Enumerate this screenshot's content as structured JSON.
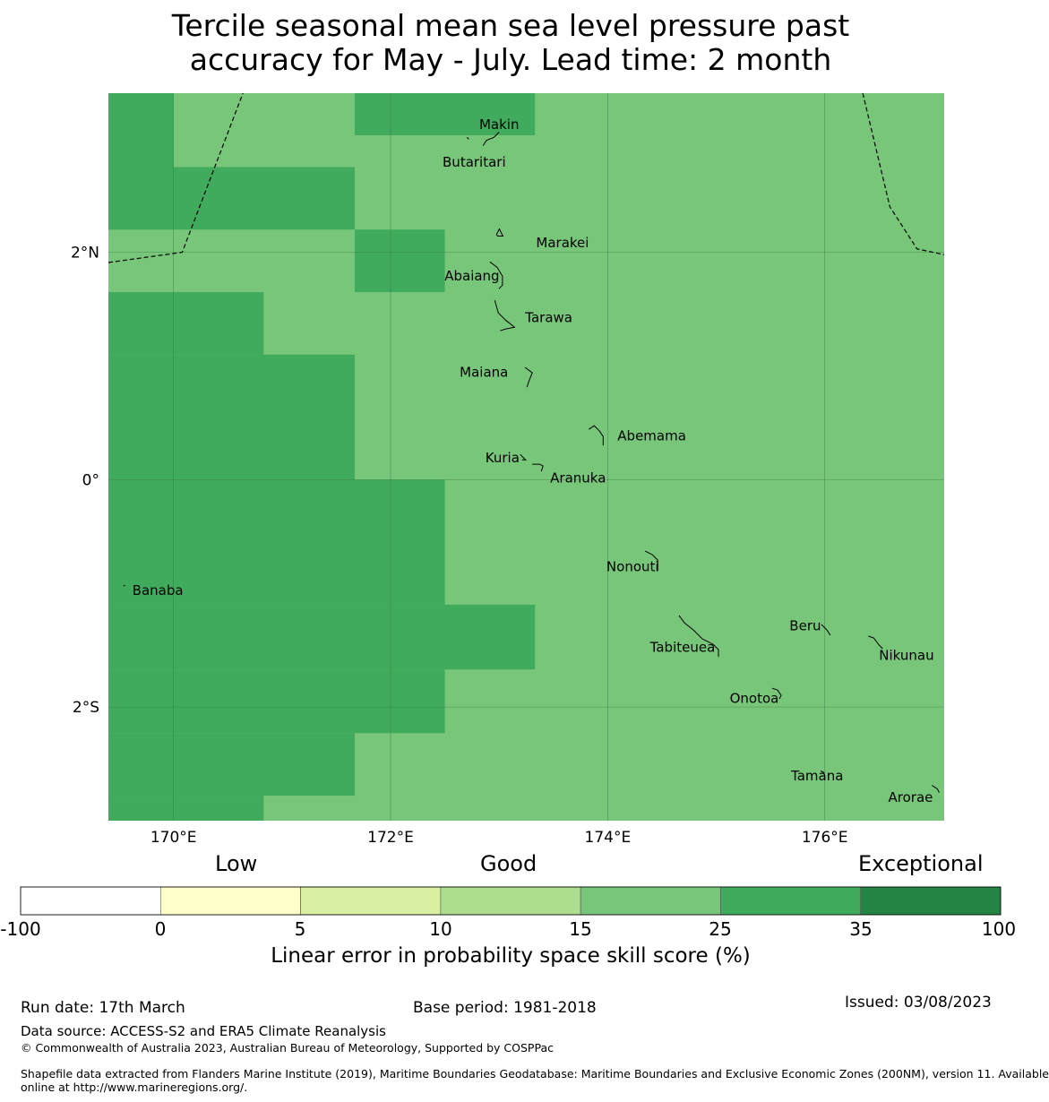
{
  "title": {
    "line1": "Tercile seasonal mean sea level pressure past",
    "line2": "accuracy for May - July. Lead time: 2 month"
  },
  "map": {
    "lon_range": [
      169.4,
      177.1
    ],
    "lat_range": [
      -3.0,
      3.4
    ],
    "lon_ticks": [
      {
        "value": 170,
        "label": "170°E"
      },
      {
        "value": 172,
        "label": "172°E"
      },
      {
        "value": 174,
        "label": "174°E"
      },
      {
        "value": 176,
        "label": "176°E"
      }
    ],
    "lat_ticks": [
      {
        "value": 2,
        "label": "2°N"
      },
      {
        "value": 0,
        "label": "0°"
      },
      {
        "value": -2,
        "label": "2°S"
      }
    ],
    "colors": {
      "skill_15_25": "#78c679",
      "skill_25_35": "#41ab5d",
      "gridline": "#2f6b3a",
      "boundary": "#000000"
    },
    "dark_cells": [
      {
        "lon": [
          169.4,
          170.0
        ],
        "lat": [
          2.2,
          3.4
        ]
      },
      {
        "lon": [
          171.67,
          173.33
        ],
        "lat": [
          3.03,
          3.4
        ]
      },
      {
        "lon": [
          169.4,
          171.67
        ],
        "lat": [
          2.2,
          2.75
        ]
      },
      {
        "lon": [
          171.67,
          172.5
        ],
        "lat": [
          1.65,
          2.2
        ]
      },
      {
        "lon": [
          169.4,
          170.83
        ],
        "lat": [
          1.1,
          1.65
        ]
      },
      {
        "lon": [
          169.4,
          171.67
        ],
        "lat": [
          0.0,
          1.1
        ]
      },
      {
        "lon": [
          169.4,
          172.5
        ],
        "lat": [
          -1.1,
          0.0
        ]
      },
      {
        "lon": [
          169.4,
          173.33
        ],
        "lat": [
          -1.67,
          -1.1
        ]
      },
      {
        "lon": [
          169.4,
          172.5
        ],
        "lat": [
          -2.23,
          -1.67
        ]
      },
      {
        "lon": [
          169.4,
          171.67
        ],
        "lat": [
          -2.78,
          -2.23
        ]
      },
      {
        "lon": [
          169.4,
          170.83
        ],
        "lat": [
          -3.0,
          -2.78
        ]
      }
    ],
    "boundaries": [
      [
        [
          169.4,
          1.91
        ],
        [
          170.08,
          2.0
        ],
        [
          170.64,
          3.4
        ]
      ],
      [
        [
          176.35,
          3.4
        ],
        [
          176.6,
          2.4
        ],
        [
          176.85,
          2.03
        ],
        [
          177.1,
          1.98
        ]
      ]
    ],
    "places": [
      {
        "name": "Makin",
        "lon": 173.0,
        "lat": 3.12,
        "anchor": "middle"
      },
      {
        "name": "Butaritari",
        "lon": 172.77,
        "lat": 2.79,
        "anchor": "middle"
      },
      {
        "name": "Marakei",
        "lon": 173.34,
        "lat": 2.08,
        "anchor": "start"
      },
      {
        "name": "Abaiang",
        "lon": 172.75,
        "lat": 1.79,
        "anchor": "middle"
      },
      {
        "name": "Tarawa",
        "lon": 173.24,
        "lat": 1.42,
        "anchor": "start"
      },
      {
        "name": "Maiana",
        "lon": 172.86,
        "lat": 0.94,
        "anchor": "middle"
      },
      {
        "name": "Abemama",
        "lon": 174.09,
        "lat": 0.38,
        "anchor": "start"
      },
      {
        "name": "Kuria",
        "lon": 173.03,
        "lat": 0.19,
        "anchor": "middle"
      },
      {
        "name": "Aranuka",
        "lon": 173.47,
        "lat": 0.01,
        "anchor": "start"
      },
      {
        "name": "Nonouti",
        "lon": 174.23,
        "lat": -0.77,
        "anchor": "middle"
      },
      {
        "name": "Banaba",
        "lon": 169.62,
        "lat": -0.98,
        "anchor": "start"
      },
      {
        "name": "Beru",
        "lon": 175.82,
        "lat": -1.29,
        "anchor": "middle"
      },
      {
        "name": "Tabiteuea",
        "lon": 174.69,
        "lat": -1.48,
        "anchor": "middle"
      },
      {
        "name": "Nikunau",
        "lon": 176.5,
        "lat": -1.55,
        "anchor": "start"
      },
      {
        "name": "Onotoa",
        "lon": 175.35,
        "lat": -1.93,
        "anchor": "middle"
      },
      {
        "name": "Tamana",
        "lon": 175.93,
        "lat": -2.61,
        "anchor": "middle"
      },
      {
        "name": "Arorae",
        "lon": 176.79,
        "lat": -2.8,
        "anchor": "middle"
      }
    ]
  },
  "legend": {
    "categories": [
      {
        "label": "Low",
        "value": -100
      },
      {
        "label": "Good",
        "value": 10
      },
      {
        "label": "Exceptional",
        "value": 100
      }
    ],
    "colorbar": [
      {
        "from": -100,
        "to": 0,
        "color": "#ffffff"
      },
      {
        "from": 0,
        "to": 5,
        "color": "#ffffcc"
      },
      {
        "from": 5,
        "to": 10,
        "color": "#d9f0a3"
      },
      {
        "from": 10,
        "to": 15,
        "color": "#addd8e"
      },
      {
        "from": 15,
        "to": 25,
        "color": "#78c679"
      },
      {
        "from": 25,
        "to": 35,
        "color": "#41ab5d"
      },
      {
        "from": 35,
        "to": 100,
        "color": "#238443"
      }
    ],
    "ticks": [
      "-100",
      "0",
      "5",
      "10",
      "15",
      "25",
      "35",
      "100"
    ],
    "label": "Linear error in probability space skill score (%)"
  },
  "footer": {
    "run_date": "Run date: 17th March",
    "base_period": "Base period: 1981-2018",
    "issued": "Issued: 03/08/2023",
    "data_source": "Data source: ACCESS-S2 and ERA5 Climate Reanalysis",
    "copyright": "© Commonwealth of Australia 2023, Australian Bureau of Meteorology, Supported by COSPPac",
    "shapefile_line1": "Shapefile data extracted from Flanders Marine Institute (2019), Maritime Boundaries Geodatabase: Maritime Boundaries and Exclusive Economic Zones (200NM), version 11. Available",
    "shapefile_line2": "online at http://www.marineregions.org/."
  }
}
